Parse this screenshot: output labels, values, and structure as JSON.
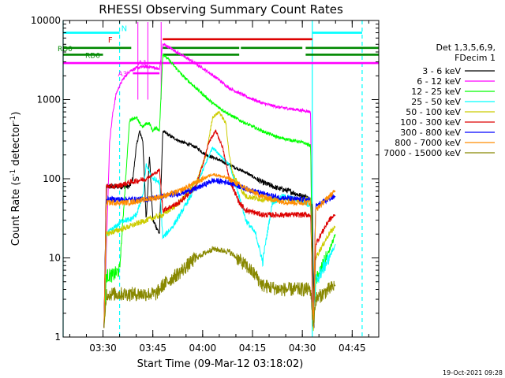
{
  "chart_data": {
    "type": "line",
    "title": "RHESSI Observing Summary Count Rates",
    "xlabel": "Start Time (09-Mar-12 03:18:02)",
    "ylabel": "Count Rate (s⁻¹ detector⁻¹)",
    "ylabel_main": "Count Rate (s",
    "ylabel_sup1": "-1",
    "ylabel_mid": " detector",
    "ylabel_sup2": "-1",
    "ylabel_end": ")",
    "yscale": "log",
    "ylim": [
      1,
      10000
    ],
    "xlim_minutes": [
      0,
      95
    ],
    "x_unit": "minutes after 03:18:02",
    "yticks": [
      1,
      10,
      100,
      1000,
      10000
    ],
    "ytick_labels": [
      "1",
      "10",
      "100",
      "1000",
      "10000"
    ],
    "xticks_minutes": [
      12,
      27,
      42,
      57,
      72,
      87
    ],
    "xtick_labels": [
      "03:30",
      "03:45",
      "04:00",
      "04:15",
      "04:30",
      "04:45"
    ],
    "legend": {
      "header": [
        "Det 1,3,5,6,9,",
        "FDecim 1"
      ],
      "placement": "right"
    },
    "footer": "19-Oct-2021 09:28",
    "flag_labels": {
      "N": "N",
      "F": "F",
      "RD0": "RD0",
      "RD6": "RD6",
      "A3": "A3",
      "A1": "A1"
    },
    "flags": [
      {
        "name": "N",
        "color": "#00ffff",
        "level": 7000,
        "segments": [
          [
            0,
            17
          ],
          [
            75,
            90
          ]
        ]
      },
      {
        "name": "F",
        "color": "#dd0000",
        "level": 5800,
        "segments": [
          [
            30,
            75
          ]
        ]
      },
      {
        "name": "RD0",
        "color": "#008800",
        "level": 4500,
        "segments": [
          [
            0,
            20.5
          ],
          [
            30,
            53
          ],
          [
            53.5,
            72
          ],
          [
            73,
            95
          ]
        ]
      },
      {
        "name": "RD6",
        "color": "#008800",
        "level": 3700,
        "segments": [
          [
            0,
            12
          ],
          [
            30,
            53
          ],
          [
            73,
            95
          ]
        ]
      },
      {
        "name": "A3",
        "color": "#ff00ff",
        "level": 2900,
        "segments": [
          [
            0,
            95
          ]
        ]
      },
      {
        "name": "A1",
        "color": "#ff00ff",
        "level": 2150,
        "segments": [
          [
            21,
            29
          ]
        ]
      }
    ],
    "eclipse_markers_minutes": [
      0,
      17,
      75,
      90
    ],
    "event_markers_minutes": [
      22.5,
      25.5,
      29.5
    ],
    "series": [
      {
        "name": "3 - 6 keV",
        "color": "#000000",
        "x": [
          12.3,
          13,
          15,
          17,
          20,
          21,
          22,
          23,
          24,
          25,
          26,
          27,
          28,
          29,
          30,
          32,
          35,
          38,
          40,
          43,
          46,
          50,
          55,
          60,
          65,
          68,
          70,
          72,
          73,
          74,
          75,
          75.5
        ],
        "y": [
          1.3,
          80,
          80,
          80,
          80,
          100,
          250,
          400,
          300,
          30,
          200,
          30,
          25,
          20,
          400,
          350,
          300,
          270,
          250,
          200,
          180,
          150,
          120,
          90,
          75,
          70,
          65,
          60,
          60,
          55,
          50,
          1.3
        ]
      },
      {
        "name": "6 - 12 keV",
        "color": "#ff00ff",
        "x": [
          12.3,
          14,
          15,
          16,
          17,
          18,
          20,
          22,
          24,
          26,
          28,
          29,
          30,
          31,
          33,
          35,
          38,
          42,
          46,
          50,
          55,
          60,
          65,
          70,
          73,
          74.5,
          75
        ],
        "y": [
          1.3,
          300,
          700,
          1200,
          1500,
          1800,
          2300,
          2500,
          2600,
          2600,
          2500,
          2400,
          5000,
          4800,
          4300,
          3800,
          3200,
          2500,
          1900,
          1400,
          1100,
          900,
          800,
          750,
          720,
          700,
          1.3
        ]
      },
      {
        "name": "12 - 25 keV",
        "color": "#00ff00",
        "x": [
          12.3,
          13,
          15,
          17,
          18,
          20,
          22,
          23,
          24,
          25,
          26,
          27,
          28,
          29,
          30,
          33,
          36,
          40,
          45,
          50,
          55,
          60,
          65,
          70,
          73,
          74.5,
          75.3,
          76,
          80,
          82
        ],
        "y": [
          1.3,
          6,
          6,
          7,
          30,
          550,
          600,
          500,
          450,
          500,
          500,
          400,
          450,
          400,
          3800,
          2800,
          2000,
          1400,
          900,
          650,
          500,
          400,
          330,
          300,
          280,
          260,
          1.3,
          5,
          12,
          20
        ]
      },
      {
        "name": "25 - 50 keV",
        "color": "#00ffff",
        "x": [
          12.3,
          13,
          16,
          18,
          20,
          22,
          24,
          25,
          27,
          29,
          30,
          33,
          36,
          40,
          45,
          50,
          53,
          55,
          58,
          60,
          63,
          66,
          70,
          73,
          74.5,
          75.3,
          76,
          80,
          82
        ],
        "y": [
          1.3,
          20,
          25,
          30,
          30,
          35,
          60,
          150,
          100,
          90,
          18,
          25,
          40,
          80,
          250,
          150,
          60,
          30,
          20,
          9,
          50,
          60,
          55,
          50,
          45,
          1.3,
          5,
          10,
          15
        ]
      },
      {
        "name": "50 - 100 keV",
        "color": "#cccc00",
        "x": [
          12.3,
          13,
          16,
          20,
          25,
          30,
          35,
          40,
          43,
          45,
          47,
          49,
          50,
          51,
          53,
          55,
          60,
          65,
          70,
          73,
          74.5,
          75.3,
          76,
          80,
          82
        ],
        "y": [
          1.3,
          20,
          22,
          25,
          30,
          35,
          50,
          90,
          200,
          600,
          700,
          500,
          200,
          120,
          80,
          60,
          55,
          55,
          55,
          55,
          55,
          1.3,
          10,
          20,
          25
        ]
      },
      {
        "name": "100 - 300 keV",
        "color": "#dd0000",
        "x": [
          12.3,
          13,
          16,
          20,
          25,
          28,
          29,
          30,
          35,
          40,
          42,
          44,
          46,
          48,
          50,
          53,
          55,
          60,
          65,
          70,
          73,
          74.5,
          75.3,
          76,
          80,
          82
        ],
        "y": [
          1.3,
          80,
          80,
          90,
          100,
          120,
          130,
          40,
          50,
          80,
          150,
          300,
          400,
          250,
          100,
          50,
          40,
          35,
          35,
          35,
          35,
          35,
          1.3,
          15,
          30,
          35
        ]
      },
      {
        "name": "300 - 800 keV",
        "color": "#0000ff",
        "x": [
          12.3,
          13,
          20,
          25,
          30,
          35,
          40,
          45,
          50,
          55,
          60,
          65,
          70,
          73,
          74.5,
          75.3,
          76,
          80,
          82
        ],
        "y": [
          1.3,
          55,
          55,
          55,
          60,
          65,
          75,
          95,
          90,
          75,
          65,
          58,
          55,
          55,
          55,
          1.3,
          45,
          55,
          60
        ]
      },
      {
        "name": "800 - 7000 keV",
        "color": "#ff8c00",
        "x": [
          12.3,
          13,
          20,
          25,
          30,
          35,
          40,
          45,
          50,
          55,
          60,
          65,
          70,
          73,
          74.5,
          75.3,
          76,
          80,
          82
        ],
        "y": [
          1.3,
          50,
          50,
          55,
          60,
          70,
          90,
          115,
          100,
          75,
          60,
          52,
          50,
          50,
          50,
          1.3,
          40,
          60,
          70
        ]
      },
      {
        "name": "7000 - 15000 keV",
        "color": "#888800",
        "x": [
          12.3,
          13,
          20,
          25,
          28,
          30,
          35,
          40,
          45,
          50,
          55,
          58,
          60,
          65,
          70,
          73,
          74.5,
          75.3,
          76,
          80,
          82
        ],
        "y": [
          1.3,
          3.5,
          3.5,
          3.5,
          3.5,
          4.5,
          6.5,
          10,
          13,
          12,
          8,
          6,
          4.5,
          4,
          4,
          4,
          4,
          1.3,
          3,
          4,
          4.5
        ]
      }
    ]
  }
}
